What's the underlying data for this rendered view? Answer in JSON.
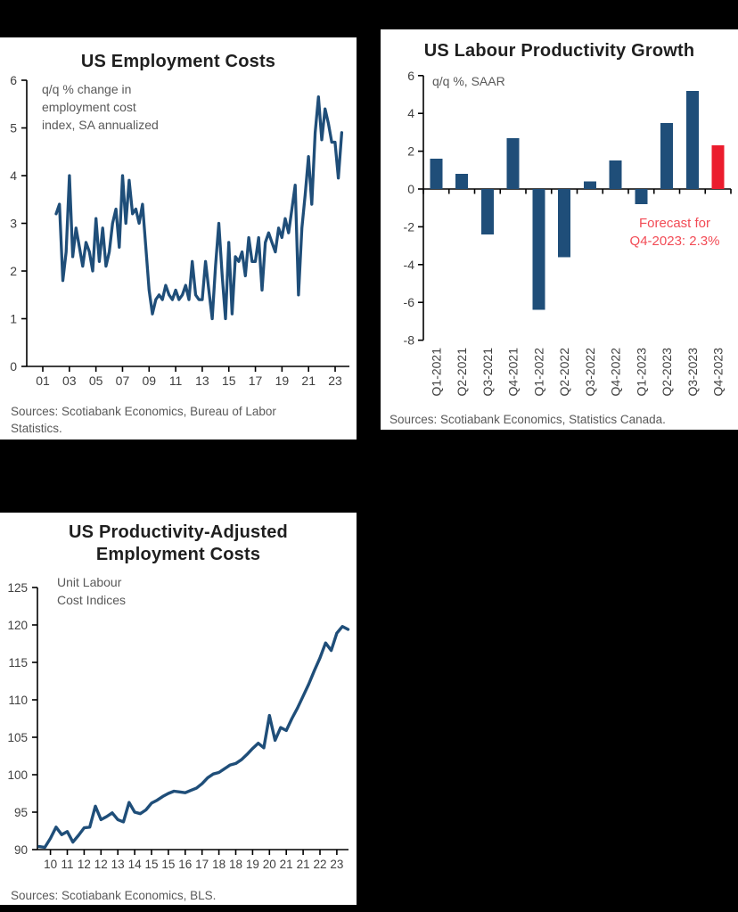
{
  "page": {
    "background_color": "#000000",
    "panel_color": "#ffffff"
  },
  "chart_data": [
    {
      "id": "us-employment-costs",
      "type": "line",
      "title": "US Employment Costs",
      "annotation": "q/q % change in\nemployment cost\nindex, SA annualized",
      "source": "Sources: Scotiabank Economics, Bureau of Labor\nStatistics.",
      "xlabel": "",
      "ylabel": "",
      "ylim": [
        0,
        6
      ],
      "yticks": [
        0,
        1,
        2,
        3,
        4,
        5,
        6
      ],
      "xtick_labels": [
        "01",
        "03",
        "05",
        "07",
        "09",
        "11",
        "13",
        "15",
        "17",
        "19",
        "21",
        "23"
      ],
      "x_description": "quarterly, 2002Q1 to 2023Q3",
      "grid": false,
      "legend": null,
      "line_color": "#1F4E79",
      "values": [
        3.2,
        3.4,
        1.8,
        2.4,
        4.0,
        2.3,
        2.9,
        2.5,
        2.1,
        2.6,
        2.4,
        2.0,
        3.1,
        2.2,
        2.9,
        2.1,
        2.4,
        3.0,
        3.3,
        2.5,
        4.0,
        3.0,
        3.9,
        3.2,
        3.3,
        3.0,
        3.4,
        2.5,
        1.6,
        1.1,
        1.4,
        1.5,
        1.4,
        1.7,
        1.5,
        1.4,
        1.6,
        1.4,
        1.5,
        1.7,
        1.4,
        2.2,
        1.5,
        1.4,
        1.4,
        2.2,
        1.6,
        1.0,
        2.1,
        3.0,
        1.9,
        1.0,
        2.6,
        1.1,
        2.3,
        2.2,
        2.4,
        1.9,
        2.7,
        2.2,
        2.2,
        2.7,
        1.6,
        2.6,
        2.8,
        2.6,
        2.4,
        2.9,
        2.7,
        3.1,
        2.8,
        3.3,
        3.8,
        1.5,
        2.9,
        3.6,
        4.4,
        3.4,
        4.9,
        5.65,
        4.75,
        5.4,
        5.1,
        4.7,
        4.7,
        3.95,
        4.9
      ]
    },
    {
      "id": "us-labour-productivity-growth",
      "type": "bar",
      "title": "US Labour Productivity Growth",
      "annotation": "q/q %, SAAR",
      "source": "Sources: Scotiabank Economics, Statistics Canada.",
      "xlabel": "",
      "ylabel": "",
      "ylim": [
        -8,
        6
      ],
      "yticks": [
        6,
        4,
        2,
        0,
        -2,
        -4,
        -6,
        -8
      ],
      "grid": false,
      "legend": null,
      "categories": [
        "Q1-2021",
        "Q2-2021",
        "Q3-2021",
        "Q4-2021",
        "Q1-2022",
        "Q2-2022",
        "Q3-2022",
        "Q4-2022",
        "Q1-2023",
        "Q2-2023",
        "Q3-2023",
        "Q4-2023"
      ],
      "values": [
        1.6,
        0.8,
        -2.4,
        2.7,
        -6.4,
        -3.6,
        0.4,
        1.5,
        -0.8,
        3.5,
        5.2,
        2.3
      ],
      "bar_color": "#1F4E79",
      "forecast_index": 11,
      "forecast_bar_color": "#EB1C2D",
      "forecast_note": "Forecast for\nQ4-2023: 2.3%",
      "forecast_note_color": "#F24B55"
    },
    {
      "id": "us-productivity-adjusted-employment-costs",
      "type": "line",
      "title": "US Productivity-Adjusted\nEmployment Costs",
      "annotation": "Unit Labour\nCost Indices",
      "source": "Sources: Scotiabank Economics, BLS.",
      "xlabel": "",
      "ylabel": "",
      "ylim": [
        90,
        125
      ],
      "yticks": [
        90,
        95,
        100,
        105,
        110,
        115,
        120,
        125
      ],
      "xtick_labels": [
        "10",
        "11",
        "12",
        "12",
        "13",
        "14",
        "15",
        "15",
        "16",
        "17",
        "18",
        "18",
        "19",
        "20",
        "21",
        "21",
        "22",
        "23"
      ],
      "x_description": "quarterly, 2010Q1 to 2023Q4",
      "grid": false,
      "legend": null,
      "line_color": "#1F4E79",
      "values": [
        90.4,
        90.3,
        91.5,
        93.0,
        92.0,
        92.4,
        91.0,
        91.9,
        92.9,
        93.0,
        95.8,
        94.0,
        94.4,
        94.9,
        94.0,
        93.7,
        96.3,
        95.0,
        94.8,
        95.3,
        96.2,
        96.6,
        97.1,
        97.5,
        97.8,
        97.7,
        97.6,
        97.9,
        98.2,
        98.8,
        99.6,
        100.1,
        100.3,
        100.8,
        101.3,
        101.5,
        102.0,
        102.7,
        103.5,
        104.2,
        103.6,
        107.9,
        104.6,
        106.3,
        105.9,
        107.5,
        108.9,
        110.5,
        112.1,
        113.9,
        115.6,
        117.6,
        116.6,
        118.9,
        119.8,
        119.4
      ]
    }
  ]
}
